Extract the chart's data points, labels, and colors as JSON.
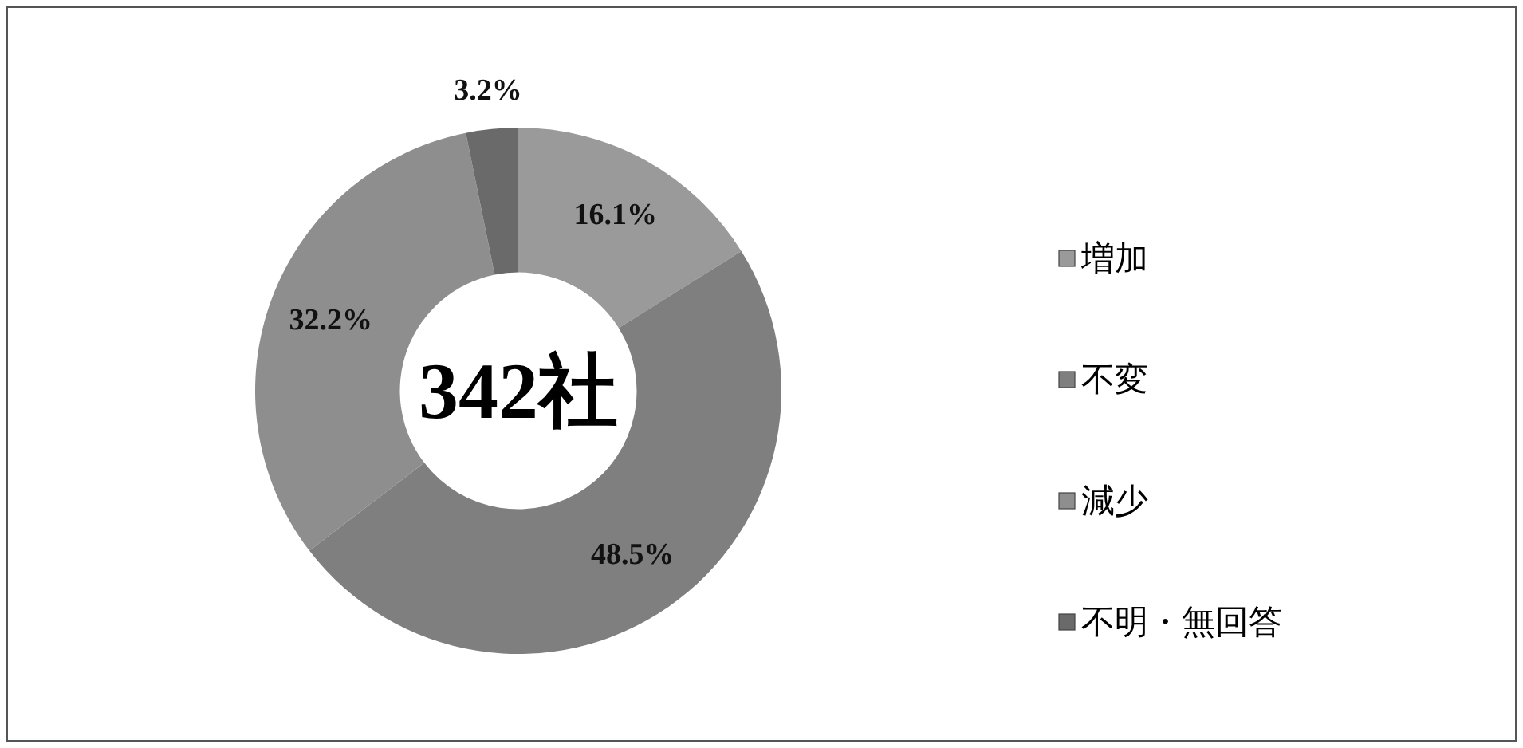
{
  "chart_data": {
    "type": "donut",
    "categories": [
      "増加",
      "不変",
      "減少",
      "不明・無回答"
    ],
    "values": [
      16.1,
      48.5,
      32.2,
      3.2
    ],
    "value_labels": [
      "16.1%",
      "48.5%",
      "32.2%",
      "3.2%"
    ],
    "colors": [
      "#9a9a9a",
      "#7f7f7f",
      "#8e8e8e",
      "#6a6a6a"
    ],
    "annotations": [
      "342社"
    ],
    "legend": "right"
  }
}
